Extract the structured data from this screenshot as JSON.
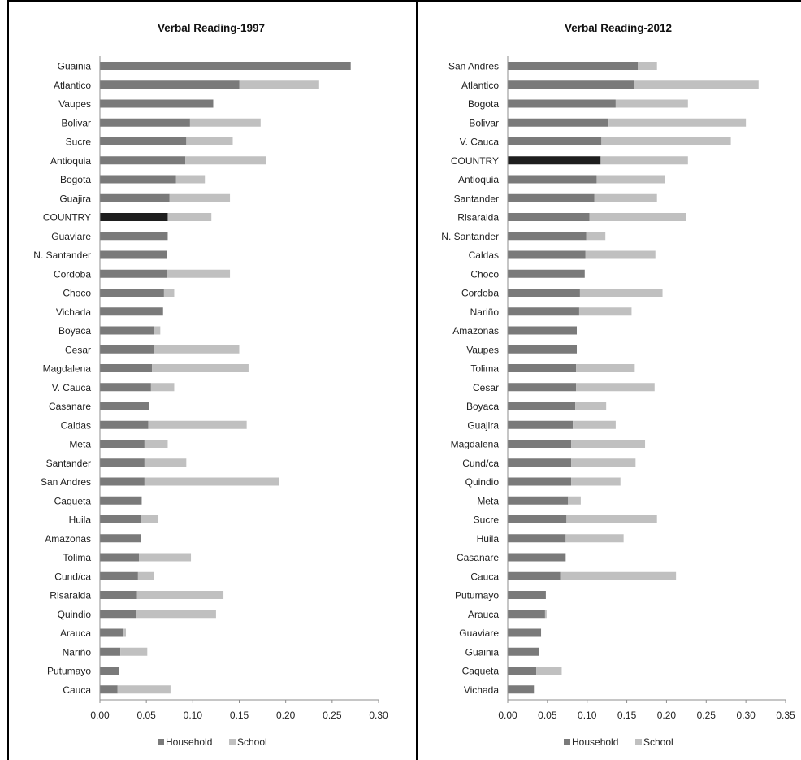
{
  "colors": {
    "household": "#7a7a7a",
    "school": "#c0c0c0",
    "country_household": "#1e1e1e",
    "axis": "#8c8c8c"
  },
  "legend": {
    "household": "Household",
    "school": "School"
  },
  "chart_data": [
    {
      "type": "bar",
      "orientation": "horizontal",
      "stacked": true,
      "title": "Verbal Reading-1997",
      "xlabel": "",
      "ylabel": "",
      "xlim": [
        0,
        0.3
      ],
      "xticks": [
        "0.00",
        "0.05",
        "0.10",
        "0.15",
        "0.20",
        "0.25",
        "0.30"
      ],
      "grid": false,
      "legend_position": "bottom",
      "highlight_category": "COUNTRY",
      "categories": [
        "Guainia",
        "Atlantico",
        "Vaupes",
        "Bolivar",
        "Sucre",
        "Antioquia",
        "Bogota",
        "Guajira",
        "COUNTRY",
        "Guaviare",
        "N. Santander",
        "Cordoba",
        "Choco",
        "Vichada",
        "Boyaca",
        "Cesar",
        "Magdalena",
        "V. Cauca",
        "Casanare",
        "Caldas",
        "Meta",
        "Santander",
        "San Andres",
        "Caqueta",
        "Huila",
        "Amazonas",
        "Tolima",
        "Cund/ca",
        "Risaralda",
        "Quindio",
        "Arauca",
        "Nariño",
        "Putumayo",
        "Cauca"
      ],
      "series": [
        {
          "name": "Household",
          "values": [
            0.27,
            0.15,
            0.122,
            0.097,
            0.093,
            0.092,
            0.082,
            0.075,
            0.073,
            0.073,
            0.072,
            0.072,
            0.069,
            0.068,
            0.058,
            0.058,
            0.056,
            0.055,
            0.053,
            0.052,
            0.048,
            0.048,
            0.048,
            0.045,
            0.044,
            0.044,
            0.042,
            0.041,
            0.04,
            0.039,
            0.025,
            0.022,
            0.021,
            0.019
          ]
        },
        {
          "name": "School",
          "values": [
            0.0,
            0.086,
            0.0,
            0.076,
            0.05,
            0.087,
            0.031,
            0.065,
            0.047,
            0.0,
            0.0,
            0.068,
            0.011,
            0.0,
            0.007,
            0.092,
            0.104,
            0.025,
            0.0,
            0.106,
            0.025,
            0.045,
            0.145,
            0.0,
            0.019,
            0.0,
            0.056,
            0.017,
            0.093,
            0.086,
            0.003,
            0.029,
            0.0,
            0.057
          ]
        }
      ]
    },
    {
      "type": "bar",
      "orientation": "horizontal",
      "stacked": true,
      "title": "Verbal Reading-2012",
      "xlabel": "",
      "ylabel": "",
      "xlim": [
        0,
        0.35
      ],
      "xticks": [
        "0.00",
        "0.05",
        "0.10",
        "0.15",
        "0.20",
        "0.25",
        "0.30",
        "0.35"
      ],
      "grid": false,
      "legend_position": "bottom",
      "highlight_category": "COUNTRY",
      "categories": [
        "San Andres",
        "Atlantico",
        "Bogota",
        "Bolivar",
        "V. Cauca",
        "COUNTRY",
        "Antioquia",
        "Santander",
        "Risaralda",
        "N. Santander",
        "Caldas",
        "Choco",
        "Cordoba",
        "Nariño",
        "Amazonas",
        "Vaupes",
        "Tolima",
        "Cesar",
        "Boyaca",
        "Guajira",
        "Magdalena",
        "Cund/ca",
        "Quindio",
        "Meta",
        "Sucre",
        "Huila",
        "Casanare",
        "Cauca",
        "Putumayo",
        "Arauca",
        "Guaviare",
        "Guainia",
        "Caqueta",
        "Vichada"
      ],
      "series": [
        {
          "name": "Household",
          "values": [
            0.164,
            0.159,
            0.136,
            0.127,
            0.118,
            0.117,
            0.112,
            0.109,
            0.103,
            0.099,
            0.098,
            0.097,
            0.091,
            0.09,
            0.087,
            0.087,
            0.086,
            0.086,
            0.085,
            0.082,
            0.08,
            0.08,
            0.08,
            0.076,
            0.074,
            0.073,
            0.073,
            0.066,
            0.048,
            0.047,
            0.042,
            0.039,
            0.036,
            0.033
          ]
        },
        {
          "name": "School",
          "values": [
            0.024,
            0.157,
            0.091,
            0.173,
            0.163,
            0.11,
            0.086,
            0.079,
            0.122,
            0.024,
            0.088,
            0.0,
            0.104,
            0.066,
            0.0,
            0.0,
            0.074,
            0.099,
            0.039,
            0.054,
            0.093,
            0.081,
            0.062,
            0.016,
            0.114,
            0.073,
            0.0,
            0.146,
            0.0,
            0.002,
            0.0,
            0.0,
            0.032,
            0.0
          ]
        }
      ]
    }
  ]
}
